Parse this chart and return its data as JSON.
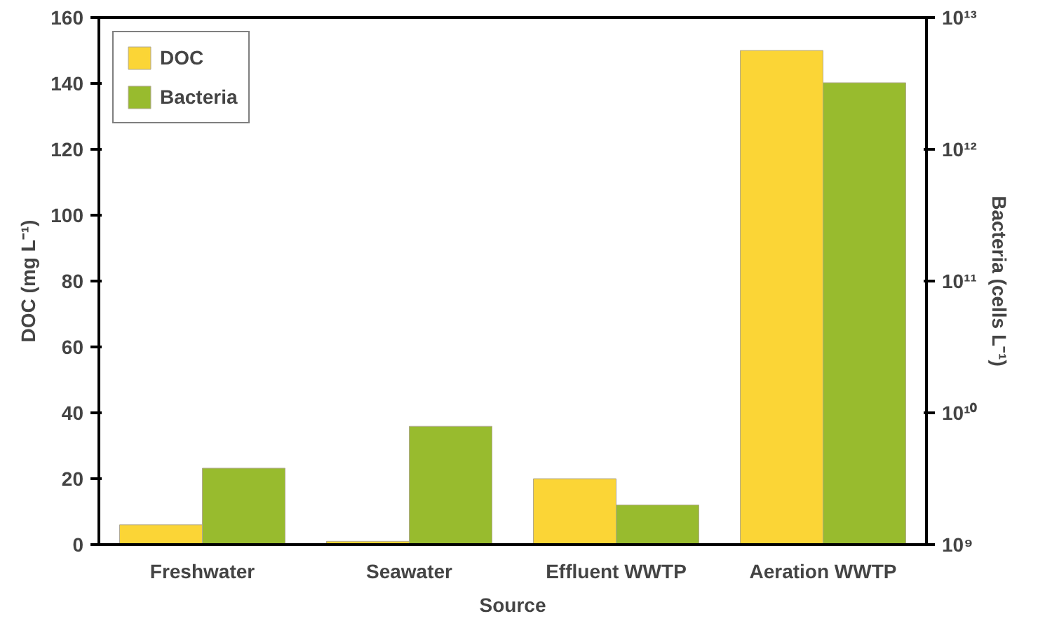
{
  "chart_data": {
    "type": "bar",
    "xlabel": "Source",
    "ylabel": "DOC (mg L⁻¹)",
    "y2label": "Bacteria (cells L⁻¹)",
    "categories": [
      "Freshwater",
      "Seawater",
      "Effluent WWTP",
      "Aeration WWTP"
    ],
    "series": [
      {
        "name": "DOC",
        "color": "#fbd536",
        "values": [
          6,
          1,
          20,
          150
        ]
      },
      {
        "name": "Bacteria",
        "color": "#98bb2e",
        "values": [
          3800000000.0,
          7900000000.0,
          2000000000.0,
          3200000000000.0
        ],
        "axis": "y2"
      }
    ],
    "ylim": [
      0,
      160
    ],
    "yticks": [
      0,
      20,
      40,
      60,
      80,
      100,
      120,
      140,
      160
    ],
    "log": "y2",
    "y2lim": [
      1000000000.0,
      10000000000000.0
    ],
    "y2ticks": [
      {
        "value": 1000000000.0,
        "label": "10⁹"
      },
      {
        "value": 10000000000.0,
        "label": "10¹⁰"
      },
      {
        "value": 100000000000.0,
        "label": "10¹¹"
      },
      {
        "value": 1000000000000.0,
        "label": "10¹²"
      },
      {
        "value": 10000000000000.0,
        "label": "10¹³"
      }
    ],
    "grid": false,
    "legend": "top left"
  }
}
